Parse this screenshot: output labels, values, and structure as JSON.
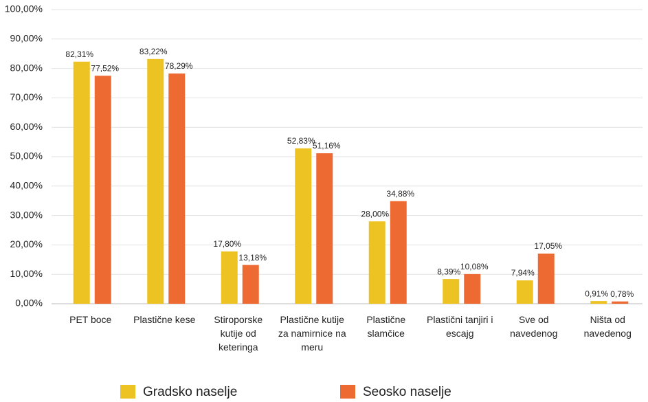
{
  "chart_data": {
    "type": "bar",
    "categories": [
      "PET boce",
      "Plastične kese",
      "Stiroporske kutije od keteringa",
      "Plastične kutije za namirnice na meru",
      "Plastične slamčice",
      "Plastični tanjiri i escajg",
      "Sve od navedenog",
      "Ništa od navedenog"
    ],
    "series": [
      {
        "name": "Gradsko naselje",
        "color": "#edc323",
        "values": [
          82.31,
          83.22,
          17.8,
          52.83,
          28.0,
          8.39,
          7.94,
          0.91
        ],
        "value_labels": [
          "82,31%",
          "83,22%",
          "17,80%",
          "52,83%",
          "28,00%",
          "8,39%",
          "7,94%",
          "0,91%"
        ]
      },
      {
        "name": "Seosko naselje",
        "color": "#ee6a33",
        "values": [
          77.52,
          78.29,
          13.18,
          51.16,
          34.88,
          10.08,
          17.05,
          0.78
        ],
        "value_labels": [
          "77,52%",
          "78,29%",
          "13,18%",
          "51,16%",
          "34,88%",
          "10,08%",
          "17,05%",
          "0,78%"
        ]
      }
    ],
    "ylim": [
      0,
      100
    ],
    "yticks": [
      {
        "value": 0,
        "label": "0,00%"
      },
      {
        "value": 10,
        "label": "10,00%"
      },
      {
        "value": 20,
        "label": "20,00%"
      },
      {
        "value": 30,
        "label": "30,00%"
      },
      {
        "value": 40,
        "label": "40,00%"
      },
      {
        "value": 50,
        "label": "50,00%"
      },
      {
        "value": 60,
        "label": "60,00%"
      },
      {
        "value": 70,
        "label": "70,00%"
      },
      {
        "value": 80,
        "label": "80,00%"
      },
      {
        "value": 90,
        "label": "90,00%"
      },
      {
        "value": 100,
        "label": "100,00%"
      }
    ],
    "grid": true,
    "legend": "bottom"
  }
}
